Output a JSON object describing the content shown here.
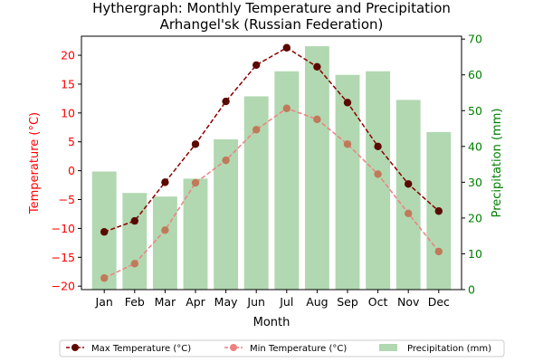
{
  "chart_data": {
    "type": "bar+line",
    "title": "Hythergraph: Monthly Temperature and Precipitation",
    "subtitle": "Arhangel'sk (Russian Federation)",
    "xlabel": "Month",
    "ylabel_left": "Temperature (°C)",
    "ylabel_right": "Precipitation (mm)",
    "categories": [
      "Jan",
      "Feb",
      "Mar",
      "Apr",
      "May",
      "Jun",
      "Jul",
      "Aug",
      "Sep",
      "Oct",
      "Nov",
      "Dec"
    ],
    "ylim_left": [
      -20.6,
      23.3
    ],
    "ylim_right": [
      0,
      70.8
    ],
    "yticks_left": [
      -20,
      -15,
      -10,
      -5,
      0,
      5,
      10,
      15,
      20
    ],
    "yticks_right": [
      0,
      10,
      20,
      30,
      40,
      50,
      60,
      70
    ],
    "series": [
      {
        "name": "Max Temperature (°C)",
        "axis": "left",
        "kind": "line",
        "values": [
          -10.6,
          -8.7,
          -2.0,
          4.6,
          12.0,
          18.3,
          21.3,
          18.0,
          11.8,
          4.2,
          -2.3,
          -7.0
        ]
      },
      {
        "name": "Min Temperature (°C)",
        "axis": "left",
        "kind": "line",
        "values": [
          -18.6,
          -16.1,
          -10.3,
          -2.1,
          1.8,
          7.1,
          10.8,
          8.9,
          4.6,
          -0.6,
          -7.4,
          -14.0
        ]
      },
      {
        "name": "Precipitation (mm)",
        "axis": "right",
        "kind": "bar",
        "values": [
          33,
          27,
          26,
          31,
          42,
          54,
          61,
          68,
          60,
          61,
          53,
          44
        ]
      }
    ],
    "colors": {
      "max": "#8b0000",
      "max_marker": "#5a0a00",
      "min": "#f08080",
      "min_marker": "#c07a5a",
      "bar": "#b1d8b1",
      "left_axis": "#ff0000",
      "right_axis": "#008000"
    },
    "legend_position": "bottom"
  }
}
